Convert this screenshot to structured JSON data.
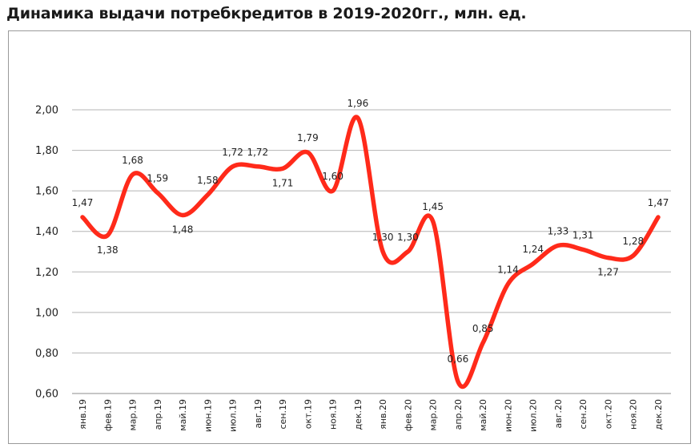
{
  "chart_data": {
    "type": "line",
    "title": "Динамика выдачи потребкредитов в 2019-2020гг., млн. ед.",
    "categories": [
      "янв.19",
      "фев.19",
      "мар.19",
      "апр.19",
      "май.19",
      "июн.19",
      "июл.19",
      "авг.19",
      "сен.19",
      "окт.19",
      "ноя.19",
      "дек.19",
      "янв.20",
      "фев.20",
      "мар.20",
      "апр.20",
      "май.20",
      "июн.20",
      "июл.20",
      "авг.20",
      "сен.20",
      "окт.20",
      "ноя.20",
      "дек.20"
    ],
    "values": [
      1.47,
      1.38,
      1.68,
      1.59,
      1.48,
      1.58,
      1.72,
      1.72,
      1.71,
      1.79,
      1.6,
      1.96,
      1.3,
      1.3,
      1.45,
      0.66,
      0.85,
      1.14,
      1.24,
      1.33,
      1.31,
      1.27,
      1.28,
      1.47
    ],
    "data_labels": [
      "1,47",
      "1,38",
      "1,68",
      "1,59",
      "1,48",
      "1,58",
      "1,72",
      "1,72",
      "1,71",
      "1,79",
      "1,60",
      "1,96",
      "1,30",
      "1,30",
      "1,45",
      "0,66",
      "0,85",
      "1,14",
      "1,24",
      "1,33",
      "1,31",
      "1,27",
      "1,28",
      "1,47"
    ],
    "yticks": [
      0.6,
      0.8,
      1.0,
      1.2,
      1.4,
      1.6,
      1.8,
      2.0
    ],
    "ytick_labels": [
      "0,60",
      "0,80",
      "1,00",
      "1,20",
      "1,40",
      "1,60",
      "1,80",
      "2,00"
    ],
    "ylim": [
      0.6,
      2.0
    ],
    "grid": true,
    "line_color": "#ff2a1a",
    "grid_color": "#b5b5b5"
  }
}
